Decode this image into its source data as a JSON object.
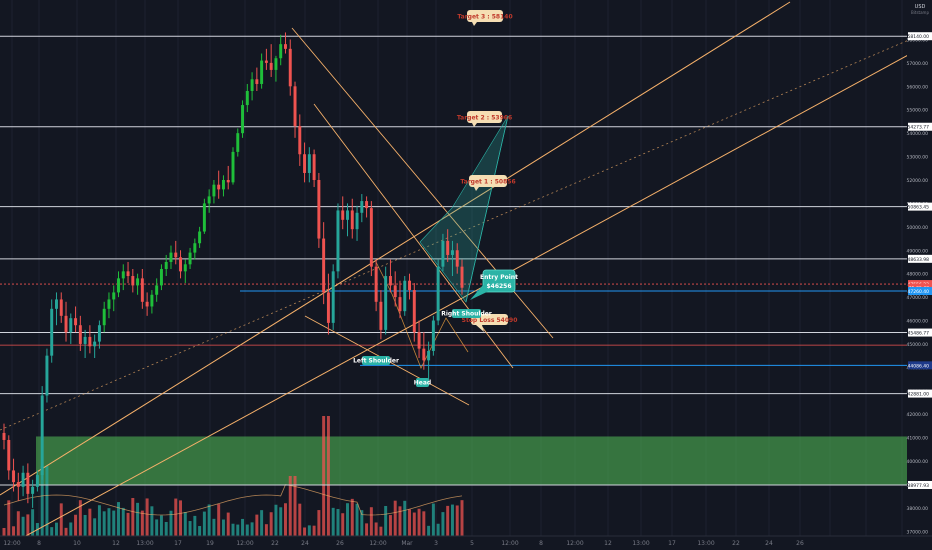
{
  "header": {
    "currency": "USD",
    "scale_mode": "Bitstamp"
  },
  "colors": {
    "background": "#131722",
    "bull": "#26a69a",
    "bull_bright": "#1fbf3a",
    "bear": "#ef5350",
    "trendline": "#f5b06a",
    "pattern_line": "#f0a040",
    "hline": "#d1d4dc",
    "red_line": "#ef5350",
    "blue_line": "#2196f3",
    "zone": "#4caf50",
    "target_tag": "#f5deb3",
    "entry_box": "#2bb3a6"
  },
  "price_axis": {
    "ticks": [
      "58000.00",
      "57000.00",
      "56000.00",
      "55000.00",
      "54000.00",
      "53000.00",
      "52000.00",
      "51000.00",
      "50000.00",
      "49000.00",
      "48000.00",
      "47000.00",
      "46000.00",
      "45000.00",
      "44000.00",
      "43000.00",
      "42000.00",
      "41000.00",
      "40000.00",
      "39000.00",
      "38000.00",
      "37000.00"
    ],
    "marked_levels": [
      {
        "text": "58140.00",
        "kind": "white"
      },
      {
        "text": "54273.77",
        "kind": "white"
      },
      {
        "text": "50863.45",
        "kind": "white"
      },
      {
        "text": "48633.98",
        "kind": "white"
      },
      {
        "text": "47556.23",
        "kind": "red"
      },
      {
        "text": "31:36:43",
        "kind": "red"
      },
      {
        "text": "47260.40",
        "kind": "blue"
      },
      {
        "text": "45486.77",
        "kind": "white"
      },
      {
        "text": "44086.40",
        "kind": "blue-dark"
      },
      {
        "text": "42881.00",
        "kind": "white"
      },
      {
        "text": "38977.93",
        "kind": "white"
      }
    ]
  },
  "time_axis": {
    "labels": [
      "12:00",
      "8",
      "10",
      "12",
      "13:00",
      "17",
      "19",
      "12:00",
      "22",
      "24",
      "26",
      "12:00",
      "Mar",
      "3",
      "5",
      "12:00",
      "8",
      "12:00",
      "12",
      "13:00",
      "17",
      "13:00",
      "22",
      "24",
      "26"
    ]
  },
  "annotations": {
    "targets": [
      {
        "text": "Target 3 : 58140"
      },
      {
        "text": "Target 2 : 53966"
      },
      {
        "text": "Target 1 : 50856"
      }
    ],
    "entry": {
      "line1": "Entry Point",
      "line2": "$46256"
    },
    "stop_loss": {
      "text": "Stop Loss 54090"
    },
    "pattern_labels": [
      {
        "text": "Left Shoulder"
      },
      {
        "text": "Head"
      },
      {
        "text": "Right Shoulder"
      }
    ]
  },
  "chart_data": {
    "type": "candlestick",
    "instrument": "BTC/USD",
    "ylim": [
      36800,
      59600
    ],
    "ohlc": [
      [
        41200,
        41600,
        40500,
        40900
      ],
      [
        40900,
        41100,
        39200,
        39600
      ],
      [
        39600,
        40100,
        38700,
        39100
      ],
      [
        39100,
        39500,
        38300,
        38900
      ],
      [
        38900,
        39800,
        38500,
        39500
      ],
      [
        39500,
        39900,
        38200,
        38600
      ],
      [
        38600,
        39200,
        38000,
        38900
      ],
      [
        38900,
        39600,
        38700,
        39400
      ],
      [
        39400,
        43200,
        39200,
        42800
      ],
      [
        42800,
        44800,
        42500,
        44500
      ],
      [
        44500,
        46900,
        44200,
        46500
      ],
      [
        46500,
        47200,
        45800,
        46900
      ],
      [
        46900,
        47200,
        45900,
        46200
      ],
      [
        46200,
        46800,
        45100,
        45500
      ],
      [
        45500,
        46300,
        45000,
        46100
      ],
      [
        46100,
        46600,
        45500,
        45800
      ],
      [
        45800,
        46200,
        44700,
        45000
      ],
      [
        45000,
        45600,
        44400,
        45300
      ],
      [
        45300,
        45800,
        44600,
        44900
      ],
      [
        44900,
        45400,
        44400,
        45100
      ],
      [
        45100,
        46000,
        44800,
        45800
      ],
      [
        45800,
        46800,
        45500,
        46500
      ],
      [
        46500,
        47200,
        46100,
        46900
      ],
      [
        46900,
        47500,
        46400,
        47200
      ],
      [
        47200,
        48100,
        47000,
        47800
      ],
      [
        47800,
        48400,
        47300,
        48100
      ],
      [
        48100,
        48500,
        47600,
        47900
      ],
      [
        47900,
        48200,
        47200,
        47500
      ],
      [
        47500,
        48000,
        47100,
        47800
      ],
      [
        47800,
        48200,
        46500,
        46800
      ],
      [
        46800,
        47200,
        46200,
        46600
      ],
      [
        46600,
        47300,
        46300,
        47100
      ],
      [
        47100,
        47800,
        46800,
        47500
      ],
      [
        47500,
        48400,
        47300,
        48200
      ],
      [
        48200,
        48800,
        47900,
        48500
      ],
      [
        48500,
        49200,
        48200,
        48900
      ],
      [
        48900,
        49400,
        48400,
        48700
      ],
      [
        48700,
        49000,
        47800,
        48100
      ],
      [
        48100,
        48600,
        47600,
        48400
      ],
      [
        48400,
        49100,
        48200,
        48900
      ],
      [
        48900,
        49500,
        48600,
        49300
      ],
      [
        49300,
        50000,
        49100,
        49800
      ],
      [
        49800,
        51200,
        49700,
        51000
      ],
      [
        51000,
        51600,
        50600,
        51300
      ],
      [
        51300,
        52000,
        51000,
        51800
      ],
      [
        51800,
        52400,
        51200,
        51600
      ],
      [
        51600,
        52200,
        51300,
        52000
      ],
      [
        52000,
        52600,
        51600,
        51900
      ],
      [
        51900,
        53400,
        51800,
        53200
      ],
      [
        53200,
        54200,
        53000,
        54000
      ],
      [
        54000,
        55400,
        53800,
        55200
      ],
      [
        55200,
        56100,
        54900,
        55800
      ],
      [
        55800,
        56600,
        55400,
        56300
      ],
      [
        56300,
        56800,
        55800,
        56100
      ],
      [
        56100,
        57400,
        55900,
        57100
      ],
      [
        57100,
        57600,
        56700,
        57000
      ],
      [
        57000,
        57800,
        56400,
        56700
      ],
      [
        56700,
        57300,
        56200,
        57200
      ],
      [
        57200,
        58200,
        56900,
        57800
      ],
      [
        57800,
        58300,
        57400,
        57600
      ],
      [
        57600,
        58000,
        55600,
        56000
      ],
      [
        56000,
        56200,
        53800,
        54300
      ],
      [
        54300,
        54800,
        52600,
        53100
      ],
      [
        53100,
        53600,
        51900,
        52300
      ],
      [
        52300,
        53400,
        51900,
        53100
      ],
      [
        53100,
        53300,
        51700,
        52000
      ],
      [
        52000,
        52300,
        49100,
        49500
      ],
      [
        49500,
        50200,
        46700,
        47200
      ],
      [
        47200,
        48000,
        45400,
        45900
      ],
      [
        45900,
        48400,
        45600,
        48100
      ],
      [
        48100,
        51000,
        47800,
        50700
      ],
      [
        50700,
        51300,
        49900,
        50300
      ],
      [
        50300,
        51000,
        49600,
        50700
      ],
      [
        50700,
        51200,
        49500,
        49900
      ],
      [
        49900,
        50900,
        49400,
        50600
      ],
      [
        50600,
        51400,
        50200,
        51100
      ],
      [
        51100,
        51300,
        50400,
        50800
      ],
      [
        50800,
        51100,
        47900,
        48300
      ],
      [
        48300,
        48600,
        46400,
        46800
      ],
      [
        46800,
        47300,
        45200,
        45600
      ],
      [
        45600,
        48300,
        45400,
        47900
      ],
      [
        47900,
        48600,
        47200,
        47500
      ],
      [
        47500,
        48100,
        46600,
        47000
      ],
      [
        47000,
        47700,
        46100,
        46400
      ],
      [
        46400,
        47900,
        46200,
        47700
      ],
      [
        47700,
        48000,
        46900,
        47300
      ],
      [
        47300,
        47600,
        45100,
        45500
      ],
      [
        45500,
        46000,
        44400,
        44800
      ],
      [
        44800,
        45500,
        43900,
        44300
      ],
      [
        44300,
        45100,
        43500,
        44700
      ],
      [
        44700,
        46200,
        44500,
        46000
      ],
      [
        46000,
        48600,
        45800,
        48300
      ],
      [
        48300,
        49700,
        48100,
        49400
      ],
      [
        49400,
        49900,
        48500,
        48800
      ],
      [
        48800,
        49400,
        47900,
        49000
      ],
      [
        49000,
        49300,
        48000,
        48300
      ],
      [
        48300,
        48600,
        47100,
        47400
      ]
    ],
    "zone": {
      "from": 38977.93,
      "to": 41050
    }
  }
}
